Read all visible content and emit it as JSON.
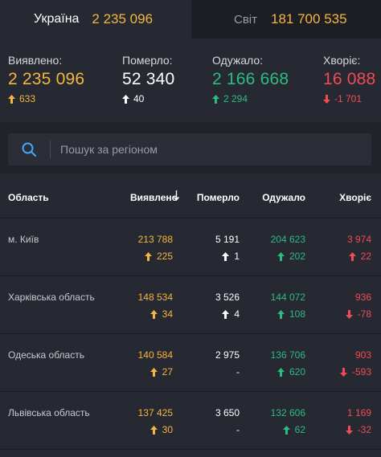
{
  "tabs": [
    {
      "name": "Україна",
      "value": "2 235 096",
      "active": true
    },
    {
      "name": "Світ",
      "value": "181 700 535",
      "active": false
    }
  ],
  "stats": {
    "detected": {
      "label": "Виявлено:",
      "value": "2 235 096",
      "delta": "633",
      "direction": "up",
      "color": "#f4b63f"
    },
    "died": {
      "label": "Померло:",
      "value": "52 340",
      "delta": "40",
      "direction": "up",
      "color": "#ffffff"
    },
    "recovered": {
      "label": "Одужало:",
      "value": "2 166 668",
      "delta": "2 294",
      "direction": "up",
      "color": "#2bbc82"
    },
    "sick": {
      "label": "Хворіє:",
      "value": "16 088",
      "delta": "-1 701",
      "direction": "down",
      "color": "#f14b55"
    }
  },
  "search": {
    "placeholder": "Пошук за регіоном",
    "value": ""
  },
  "table": {
    "headers": {
      "region": "Область",
      "detected": "Виявлено",
      "died": "Померло",
      "recovered": "Одужало",
      "sick": "Хворіє"
    },
    "sorted_by": "detected",
    "rows": [
      {
        "region": "м. Київ",
        "detected": "213 788",
        "detected_delta": "225",
        "died": "5 191",
        "died_delta": "1",
        "recovered": "204 623",
        "recovered_delta": "202",
        "sick": "3 974",
        "sick_delta": "22",
        "sick_direction": "up"
      },
      {
        "region": "Харківська область",
        "detected": "148 534",
        "detected_delta": "34",
        "died": "3 526",
        "died_delta": "4",
        "recovered": "144 072",
        "recovered_delta": "108",
        "sick": "936",
        "sick_delta": "-78",
        "sick_direction": "down"
      },
      {
        "region": "Одеська область",
        "detected": "140 584",
        "detected_delta": "27",
        "died": "2 975",
        "died_delta": "-",
        "recovered": "136 706",
        "recovered_delta": "620",
        "sick": "903",
        "sick_delta": "-593",
        "sick_direction": "down"
      },
      {
        "region": "Львівська область",
        "detected": "137 425",
        "detected_delta": "30",
        "died": "3 650",
        "died_delta": "-",
        "recovered": "132 606",
        "recovered_delta": "62",
        "sick": "1 169",
        "sick_delta": "-32",
        "sick_direction": "down"
      }
    ]
  },
  "colors": {
    "detected": "#f4b63f",
    "died": "#ffffff",
    "recovered": "#2bbc82",
    "sick": "#f14b55",
    "accent": "#3fa9f5"
  }
}
